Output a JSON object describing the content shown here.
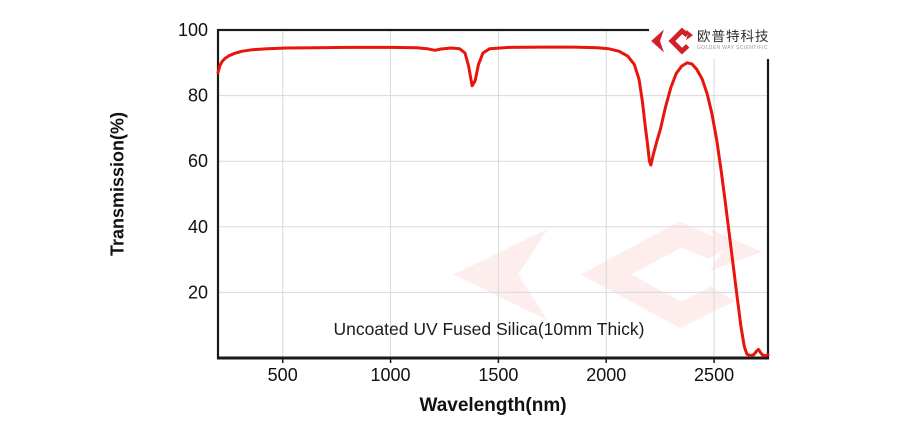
{
  "page": {
    "background": "#ffffff"
  },
  "brand": {
    "name_cn": "欧普特科技",
    "name_en": "GOLDEN WAY SCIENTIFIC",
    "logo_color": "#cf2127"
  },
  "chart_data": {
    "type": "line",
    "title": "Uncoated UV Fused Silica(10mm Thick)",
    "xlabel": "Wavelength(nm)",
    "ylabel": "Transmission(%)",
    "xlim": [
      200,
      2750
    ],
    "ylim": [
      0,
      100
    ],
    "x_ticks": [
      500,
      1000,
      1500,
      2000,
      2500
    ],
    "y_ticks": [
      20,
      40,
      60,
      80,
      100
    ],
    "grid": true,
    "legend": "none",
    "colors": {
      "line": "#e8150d",
      "grid": "#d9d9d9",
      "axis": "#1a1a1a",
      "watermark": "#e8150d",
      "watermark_opacity": 0.07
    },
    "series": [
      {
        "name": "Transmission",
        "points": [
          [
            200,
            87
          ],
          [
            208,
            89
          ],
          [
            218,
            90.3
          ],
          [
            232,
            91.3
          ],
          [
            252,
            92.2
          ],
          [
            278,
            92.9
          ],
          [
            310,
            93.5
          ],
          [
            360,
            94
          ],
          [
            430,
            94.3
          ],
          [
            520,
            94.5
          ],
          [
            650,
            94.6
          ],
          [
            800,
            94.7
          ],
          [
            1000,
            94.7
          ],
          [
            1120,
            94.6
          ],
          [
            1170,
            94.3
          ],
          [
            1205,
            93.8
          ],
          [
            1235,
            94.2
          ],
          [
            1280,
            94.5
          ],
          [
            1320,
            94.3
          ],
          [
            1345,
            93
          ],
          [
            1362,
            89
          ],
          [
            1378,
            83
          ],
          [
            1392,
            84.5
          ],
          [
            1408,
            89.5
          ],
          [
            1428,
            93
          ],
          [
            1460,
            94.3
          ],
          [
            1550,
            94.7
          ],
          [
            1700,
            94.8
          ],
          [
            1850,
            94.8
          ],
          [
            1960,
            94.6
          ],
          [
            2010,
            94.3
          ],
          [
            2060,
            93.5
          ],
          [
            2100,
            92
          ],
          [
            2130,
            89.5
          ],
          [
            2152,
            85
          ],
          [
            2168,
            78
          ],
          [
            2180,
            71
          ],
          [
            2192,
            65
          ],
          [
            2200,
            60
          ],
          [
            2207,
            58.8
          ],
          [
            2218,
            62
          ],
          [
            2232,
            65.5
          ],
          [
            2252,
            70
          ],
          [
            2275,
            76.5
          ],
          [
            2300,
            82.5
          ],
          [
            2325,
            86.8
          ],
          [
            2350,
            89
          ],
          [
            2375,
            90
          ],
          [
            2398,
            89.6
          ],
          [
            2420,
            88
          ],
          [
            2445,
            85
          ],
          [
            2468,
            80.5
          ],
          [
            2490,
            74.5
          ],
          [
            2512,
            66.5
          ],
          [
            2533,
            57
          ],
          [
            2553,
            47
          ],
          [
            2572,
            37
          ],
          [
            2590,
            27.5
          ],
          [
            2608,
            18
          ],
          [
            2625,
            9.5
          ],
          [
            2640,
            3.5
          ],
          [
            2652,
            1.2
          ],
          [
            2668,
            0.7
          ],
          [
            2684,
            1
          ],
          [
            2698,
            2.2
          ],
          [
            2706,
            2.6
          ],
          [
            2716,
            1.6
          ],
          [
            2728,
            0.7
          ],
          [
            2742,
            0.8
          ],
          [
            2750,
            1
          ]
        ]
      }
    ]
  }
}
